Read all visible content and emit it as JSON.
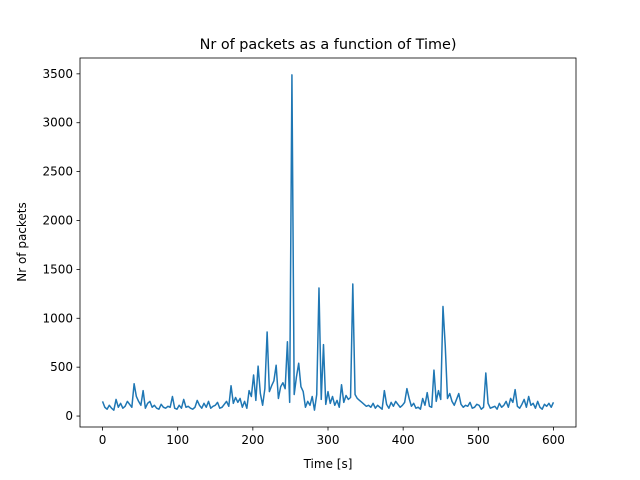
{
  "chart_data": {
    "type": "line",
    "title": "Nr of packets as a function of Time)",
    "xlabel": "Time [s]",
    "ylabel": "Nr of packets",
    "x": [
      0,
      3,
      6,
      9,
      12,
      15,
      18,
      21,
      24,
      27,
      30,
      33,
      36,
      39,
      42,
      45,
      48,
      51,
      54,
      57,
      60,
      63,
      66,
      69,
      72,
      75,
      78,
      81,
      84,
      87,
      90,
      93,
      96,
      99,
      102,
      105,
      108,
      111,
      114,
      117,
      120,
      123,
      126,
      129,
      132,
      135,
      138,
      141,
      144,
      147,
      150,
      153,
      156,
      159,
      162,
      165,
      168,
      171,
      174,
      177,
      180,
      183,
      186,
      189,
      192,
      195,
      198,
      201,
      204,
      207,
      210,
      213,
      216,
      219,
      222,
      225,
      228,
      231,
      234,
      237,
      240,
      243,
      246,
      249,
      252,
      255,
      258,
      261,
      264,
      267,
      270,
      273,
      276,
      279,
      282,
      285,
      288,
      291,
      294,
      297,
      300,
      303,
      306,
      309,
      312,
      315,
      318,
      321,
      324,
      327,
      330,
      333,
      336,
      339,
      342,
      345,
      348,
      351,
      354,
      357,
      360,
      363,
      366,
      369,
      372,
      375,
      378,
      381,
      384,
      387,
      390,
      393,
      396,
      399,
      402,
      405,
      408,
      411,
      414,
      417,
      420,
      423,
      426,
      429,
      432,
      435,
      438,
      441,
      444,
      447,
      450,
      453,
      456,
      459,
      462,
      465,
      468,
      471,
      474,
      477,
      480,
      483,
      486,
      489,
      492,
      495,
      498,
      501,
      504,
      507,
      510,
      513,
      516,
      519,
      522,
      525,
      528,
      531,
      534,
      537,
      540,
      543,
      546,
      549,
      552,
      555,
      558,
      561,
      564,
      567,
      570,
      573,
      576,
      579,
      582,
      585,
      588,
      591,
      594,
      597,
      600
    ],
    "series": [
      {
        "name": "packets",
        "color": "#1f77b4",
        "values": [
          150,
          90,
          70,
          110,
          80,
          60,
          170,
          90,
          130,
          80,
          100,
          150,
          120,
          90,
          330,
          200,
          150,
          110,
          260,
          80,
          130,
          150,
          90,
          110,
          80,
          70,
          120,
          90,
          80,
          100,
          90,
          200,
          80,
          70,
          110,
          80,
          170,
          90,
          100,
          80,
          70,
          90,
          160,
          110,
          80,
          130,
          90,
          150,
          80,
          100,
          110,
          140,
          80,
          90,
          120,
          150,
          100,
          310,
          130,
          190,
          140,
          180,
          90,
          150,
          80,
          260,
          200,
          420,
          160,
          510,
          230,
          110,
          280,
          860,
          250,
          310,
          360,
          520,
          180,
          300,
          340,
          280,
          760,
          140,
          3490,
          220,
          400,
          540,
          300,
          250,
          90,
          150,
          110,
          200,
          60,
          220,
          1310,
          170,
          730,
          120,
          250,
          130,
          200,
          110,
          160,
          90,
          320,
          140,
          210,
          170,
          190,
          1350,
          220,
          180,
          160,
          140,
          120,
          100,
          110,
          90,
          130,
          80,
          110,
          90,
          70,
          260,
          120,
          80,
          140,
          100,
          150,
          120,
          90,
          110,
          140,
          280,
          180,
          100,
          130,
          80,
          90,
          70,
          180,
          110,
          240,
          100,
          90,
          470,
          150,
          260,
          170,
          1120,
          720,
          180,
          230,
          150,
          110,
          170,
          230,
          120,
          90,
          110,
          100,
          140,
          80,
          90,
          120,
          110,
          70,
          90,
          440,
          130,
          80,
          90,
          100,
          70,
          130,
          90,
          110,
          150,
          90,
          180,
          140,
          270,
          100,
          80,
          120,
          170,
          90,
          200,
          110,
          130,
          80,
          150,
          90,
          70,
          120,
          100,
          130,
          90,
          140
        ]
      }
    ],
    "xlim": [
      -30,
      630
    ],
    "ylim": [
      -112,
      3662
    ],
    "xticks": [
      0,
      100,
      200,
      300,
      400,
      500,
      600
    ],
    "yticks": [
      0,
      500,
      1000,
      1500,
      2000,
      2500,
      3000,
      3500
    ],
    "grid": false
  }
}
